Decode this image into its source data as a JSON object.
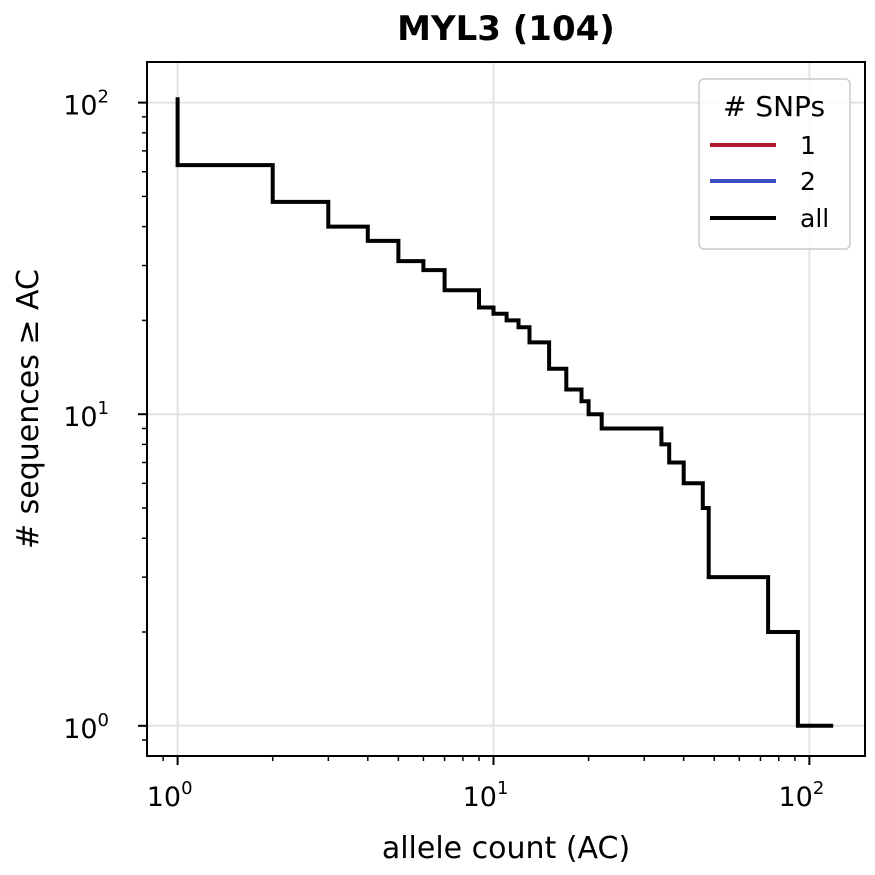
{
  "chart_data": {
    "type": "line",
    "title": "MYL3 (104)",
    "xlabel": "allele count (AC)",
    "ylabel": "# sequences ≥ AC",
    "xscale": "log",
    "yscale": "log",
    "xlim": [
      0.8,
      150
    ],
    "ylim": [
      0.8,
      135
    ],
    "grid": true,
    "x_ticks": [
      {
        "value": 1,
        "base": "10",
        "exp": "0"
      },
      {
        "value": 10,
        "base": "10",
        "exp": "1"
      },
      {
        "value": 100,
        "base": "10",
        "exp": "2"
      }
    ],
    "y_ticks": [
      {
        "value": 1,
        "base": "10",
        "exp": "0"
      },
      {
        "value": 10,
        "base": "10",
        "exp": "1"
      },
      {
        "value": 100,
        "base": "10",
        "exp": "2"
      }
    ],
    "legend": {
      "title": "# SNPs",
      "placement": "top-right",
      "entries": [
        {
          "label": "1",
          "color": "#b2182b"
        },
        {
          "label": "2",
          "color": "#3b4cc0"
        },
        {
          "label": "all",
          "color": "#000000"
        }
      ]
    },
    "series": [
      {
        "name": "all",
        "color": "#000000",
        "step": "post",
        "x": [
          1,
          1,
          2,
          3,
          4,
          5,
          6,
          7,
          9,
          10,
          11,
          12,
          13,
          15,
          17,
          19,
          20,
          22,
          34,
          36,
          40,
          46,
          48,
          74,
          92,
          119
        ],
        "y": [
          104,
          63,
          48,
          40,
          36,
          31,
          29,
          25,
          22,
          21,
          20,
          19,
          17,
          14,
          12,
          11,
          10,
          9,
          8,
          7,
          6,
          5,
          3,
          2,
          1,
          1
        ]
      }
    ]
  }
}
